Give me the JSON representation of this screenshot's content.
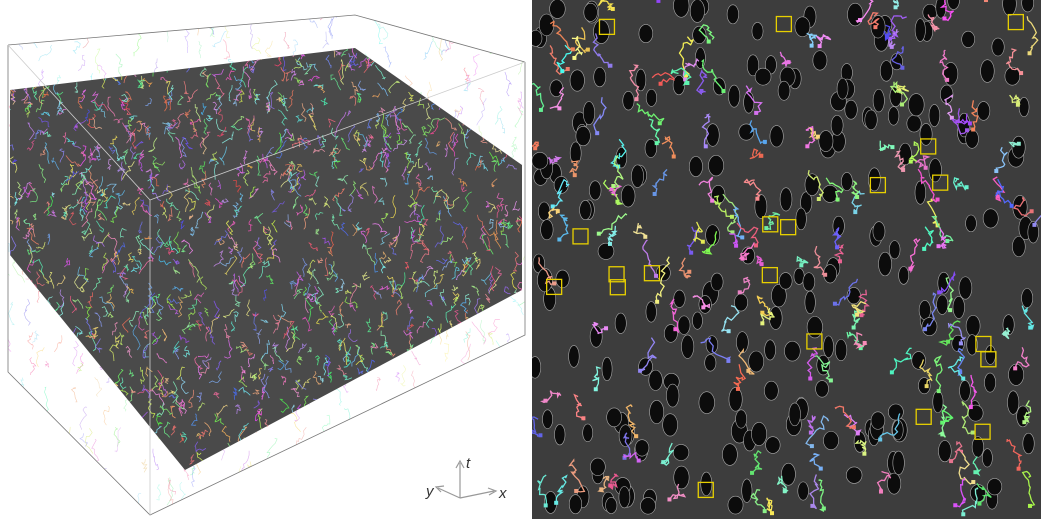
{
  "axes": {
    "t": "t",
    "y": "y",
    "x": "x"
  }
}
